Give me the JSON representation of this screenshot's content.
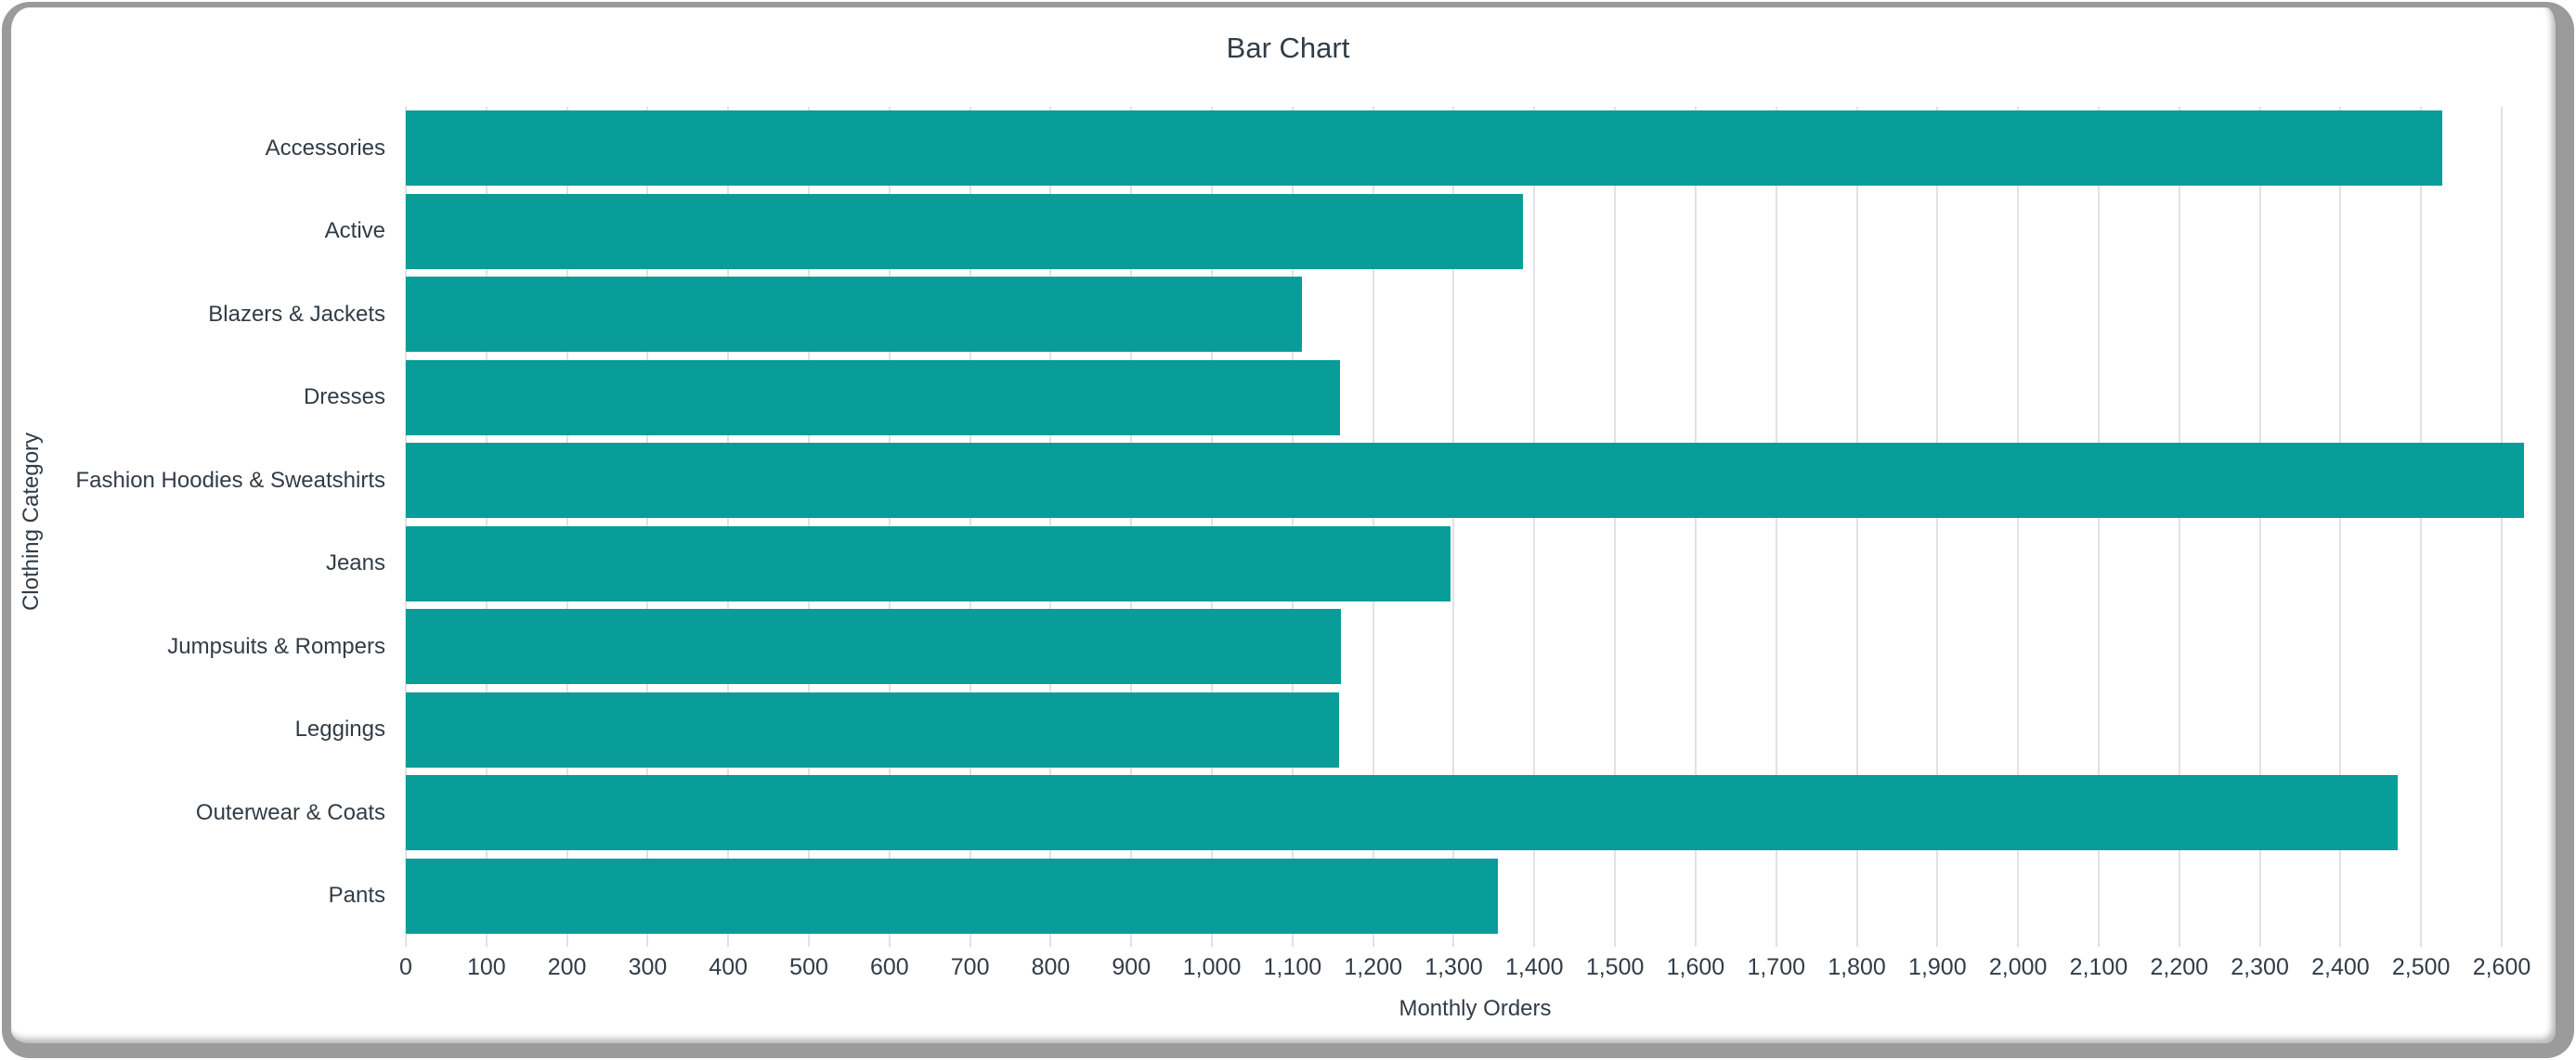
{
  "window": {
    "frame_color": "#9b9b9b",
    "background": "#ffffff"
  },
  "chart_data": {
    "type": "bar",
    "orientation": "horizontal",
    "title": "Bar Chart",
    "xlabel": "Monthly Orders",
    "ylabel": "Clothing Category",
    "categories": [
      "Accessories",
      "Active",
      "Blazers & Jackets",
      "Dresses",
      "Fashion Hoodies & Sweatshirts",
      "Jeans",
      "Jumpsuits & Rompers",
      "Leggings",
      "Outerwear & Coats",
      "Pants"
    ],
    "values": [
      2526,
      1386,
      1112,
      1159,
      2628,
      1296,
      1160,
      1158,
      2471,
      1355
    ],
    "xlim": [
      0,
      2653
    ],
    "xticks": [
      0,
      100,
      200,
      300,
      400,
      500,
      600,
      700,
      800,
      900,
      1000,
      1100,
      1200,
      1300,
      1400,
      1500,
      1600,
      1700,
      1800,
      1900,
      2000,
      2100,
      2200,
      2300,
      2400,
      2500,
      2600
    ],
    "xtick_format": "thousands-comma",
    "grid": "vertical",
    "legend": "none",
    "bar_color": "#089d98",
    "grid_color": "#e2e2e2",
    "text_color": "#323c46"
  }
}
